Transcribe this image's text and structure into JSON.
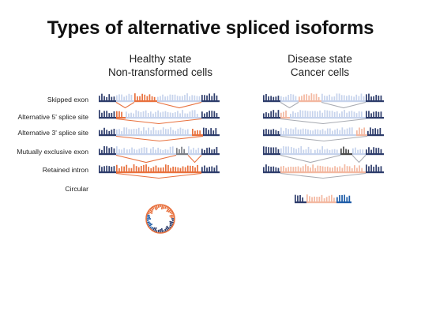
{
  "title": "Types of alternative spliced isoforms",
  "columns": {
    "healthy": {
      "line1": "Healthy state",
      "line2": "Non-transformed cells"
    },
    "disease": {
      "line1": "Disease state",
      "line2": "Cancer cells"
    }
  },
  "rows": [
    {
      "label": "Skipped exon"
    },
    {
      "label": "Alternative 5' splice site"
    },
    {
      "label": "Alternative 3' splice site"
    },
    {
      "label": "Mutually exclusive exon"
    },
    {
      "label": "Retained intron"
    },
    {
      "label": "Circular"
    }
  ],
  "colors": {
    "dark_navy": "#2d3c6b",
    "orange": "#e8713e",
    "light_blue": "#c6d3ec",
    "peach": "#f3b8a1",
    "mid_blue": "#1f5da8",
    "gray": "#7b7f87",
    "dark_gray": "#4c4c4c",
    "line_orange": "#e8713e",
    "line_gray": "#a9acb3"
  }
}
